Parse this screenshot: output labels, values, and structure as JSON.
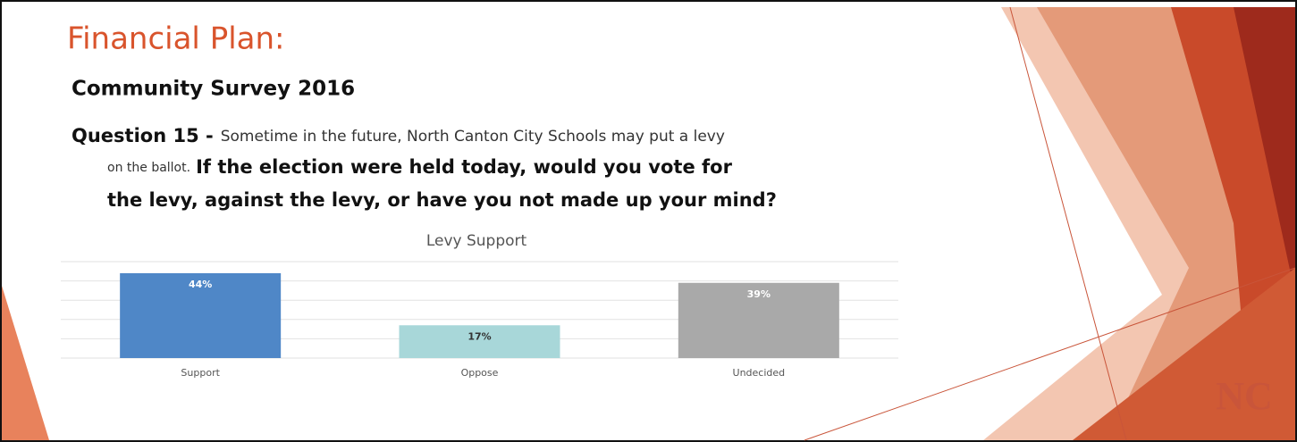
{
  "slide": {
    "title": "Financial Plan:",
    "subtitle": "Community Survey 2016",
    "question": {
      "label": "Question 15 -",
      "line1": "Sometime in the future, North Canton City Schools may put a levy",
      "line2_intro": "on the ballot.",
      "line2_bold": "If the election were held today, would you vote for",
      "line3_bold": "the levy, against the levy, or have you not made up your mind?"
    },
    "logo": "NC"
  },
  "chart_data": {
    "type": "bar",
    "title": "Levy Support",
    "categories": [
      "Support",
      "Oppose",
      "Undecided"
    ],
    "values": [
      44,
      17,
      39
    ],
    "value_labels": [
      "44%",
      "17%",
      "39%"
    ],
    "colors": [
      "#4f87c7",
      "#a8d7d9",
      "#a9a9a9"
    ],
    "ylim": [
      0,
      50
    ],
    "yticks": [
      0,
      10,
      20,
      30,
      40,
      50
    ],
    "grid": true
  }
}
